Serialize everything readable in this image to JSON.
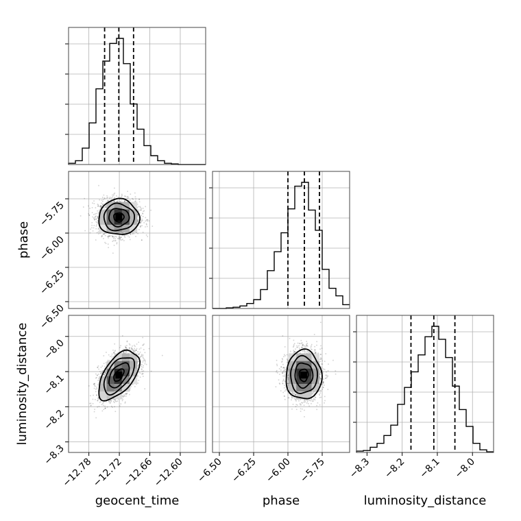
{
  "chart_data": {
    "type": "corner",
    "parameters": [
      {
        "key": "geocent_time",
        "label": "geocent_time",
        "range": [
          -12.82,
          -12.55
        ],
        "ticks": [
          -12.78,
          -12.72,
          -12.66,
          -12.6
        ],
        "tick_labels": [
          "−12.78",
          "−12.72",
          "−12.66",
          "−12.60"
        ],
        "quantiles": [
          -12.749,
          -12.721,
          -12.692
        ],
        "mean": -12.721,
        "sd": 0.02
      },
      {
        "key": "phase",
        "label": "phase",
        "range": [
          -6.55,
          -5.55
        ],
        "ticks": [
          -6.5,
          -6.25,
          -6.0,
          -5.75
        ],
        "tick_labels": [
          "−6.50",
          "−6.25",
          "−6.00",
          "−5.75"
        ],
        "quantiles": [
          -6.0,
          -5.88,
          -5.77
        ],
        "mean": -5.885,
        "sd": 0.065
      },
      {
        "key": "luminosity_distance",
        "label": "luminosity_distance",
        "range": [
          -8.33,
          -7.94
        ],
        "ticks": [
          -8.3,
          -8.2,
          -8.1,
          -8.0
        ],
        "tick_labels": [
          "−8.3",
          "−8.2",
          "−8.1",
          "−8.0"
        ],
        "quantiles": [
          -8.175,
          -8.11,
          -8.05
        ],
        "mean": -8.11,
        "sd": 0.035
      }
    ],
    "histograms": {
      "geocent_time": {
        "bin_edges": [
          -12.82,
          -12.8065,
          -12.793,
          -12.7795,
          -12.766,
          -12.7525,
          -12.739,
          -12.7255,
          -12.712,
          -12.6985,
          -12.685,
          -12.6715,
          -12.658,
          -12.6445,
          -12.631,
          -12.6175,
          -12.604,
          -12.5905,
          -12.577,
          -12.5635,
          -12.55
        ],
        "counts": [
          0.01,
          0.03,
          0.13,
          0.33,
          0.6,
          0.82,
          0.96,
          1.0,
          0.8,
          0.48,
          0.28,
          0.15,
          0.07,
          0.03,
          0.01,
          0.005,
          0,
          0,
          0,
          0
        ]
      },
      "phase": {
        "bin_edges": [
          -6.55,
          -6.5,
          -6.45,
          -6.4,
          -6.35,
          -6.3,
          -6.25,
          -6.2,
          -6.15,
          -6.1,
          -6.05,
          -6.0,
          -5.95,
          -5.9,
          -5.85,
          -5.8,
          -5.75,
          -5.7,
          -5.65,
          -5.6,
          -5.55
        ],
        "counts": [
          0,
          0,
          0.005,
          0.01,
          0.02,
          0.04,
          0.07,
          0.15,
          0.3,
          0.45,
          0.6,
          0.79,
          0.97,
          1.0,
          0.78,
          0.62,
          0.31,
          0.16,
          0.1,
          0.03
        ]
      },
      "luminosity_distance": {
        "bin_edges": [
          -8.33,
          -8.3105,
          -8.291,
          -8.2715,
          -8.252,
          -8.2325,
          -8.213,
          -8.1935,
          -8.174,
          -8.1545,
          -8.135,
          -8.1155,
          -8.096,
          -8.0765,
          -8.057,
          -8.0375,
          -8.018,
          -7.9985,
          -7.979,
          -7.9595,
          -7.94
        ],
        "counts": [
          0.01,
          0.015,
          0.04,
          0.07,
          0.13,
          0.21,
          0.37,
          0.5,
          0.62,
          0.75,
          0.89,
          0.97,
          0.87,
          0.73,
          0.51,
          0.33,
          0.2,
          0.07,
          0.02,
          0.005
        ]
      }
    },
    "pairs": [
      {
        "x": "geocent_time",
        "y": "phase",
        "correlation": 0.0
      },
      {
        "x": "geocent_time",
        "y": "luminosity_distance",
        "correlation": 0.55
      },
      {
        "x": "phase",
        "y": "luminosity_distance",
        "correlation": 0.0
      }
    ],
    "contour_levels_sigma": [
      0.5,
      1.0,
      1.5,
      2.0
    ],
    "grid": true
  },
  "labels": {
    "x_geocent_time": "geocent_time",
    "x_phase": "phase",
    "x_luminosity_distance": "luminosity_distance",
    "y_phase": "phase",
    "y_luminosity_distance": "luminosity_distance"
  }
}
